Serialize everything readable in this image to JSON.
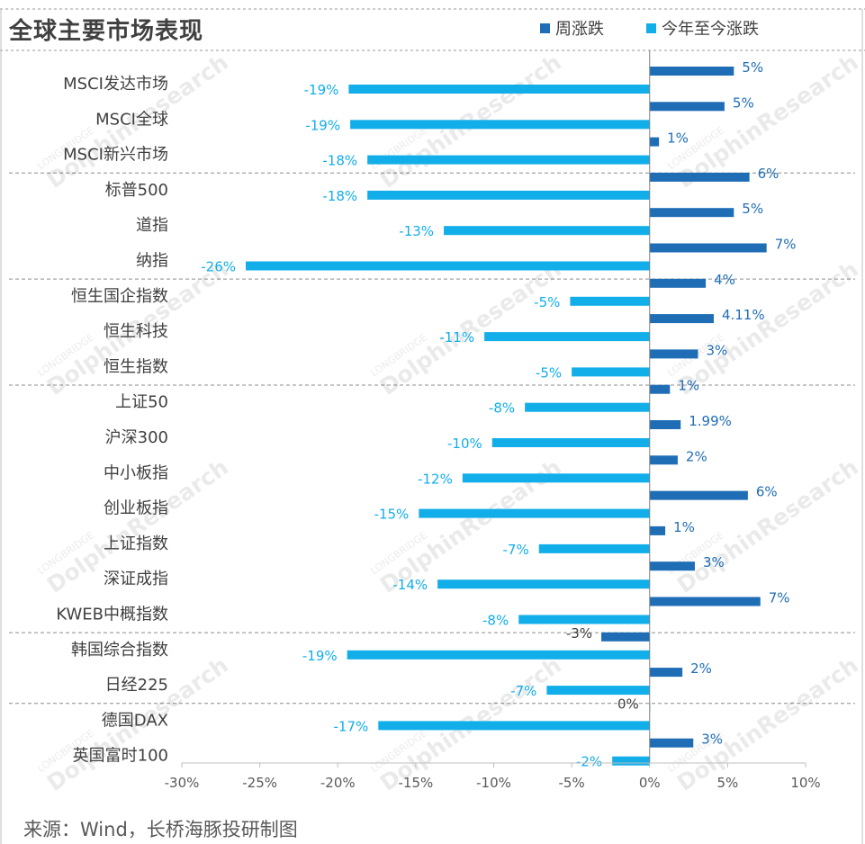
{
  "chart_data": {
    "type": "bar",
    "orientation": "horizontal",
    "title": "全球主要市场表现",
    "source": "来源：Wind，长桥海豚投研制图",
    "watermark": "LONGBRIDGE DolphinResearch",
    "xlim": [
      -30,
      10
    ],
    "xticks": [
      -30,
      -25,
      -20,
      -15,
      -10,
      -5,
      0,
      5,
      10
    ],
    "tick_labels": [
      "-30%",
      "-25%",
      "-20%",
      "-15%",
      "-10%",
      "-5%",
      "0%",
      "5%",
      "10%"
    ],
    "categories": [
      "MSCI发达市场",
      "MSCI全球",
      "MSCI新兴市场",
      "标普500",
      "道指",
      "纳指",
      "恒生国企指数",
      "恒生科技",
      "恒生指数",
      "上证50",
      "沪深300",
      "中小板指",
      "创业板指",
      "上证指数",
      "深证成指",
      "KWEB中概指数",
      "韩国综合指数",
      "日经225",
      "德国DAX",
      "英国富时100"
    ],
    "series": [
      {
        "name": "周涨跌",
        "color": "#1F6DB5",
        "values": [
          5.4,
          4.8,
          0.6,
          6.4,
          5.4,
          7.5,
          3.6,
          4.11,
          3.1,
          1.3,
          1.99,
          1.8,
          6.3,
          1.0,
          2.9,
          7.1,
          -3.1,
          2.1,
          0.0,
          2.8
        ],
        "labels": [
          "5%",
          "5%",
          "1%",
          "6%",
          "5%",
          "7%",
          "4%",
          "4.11%",
          "3%",
          "1%",
          "1.99%",
          "2%",
          "6%",
          "1%",
          "3%",
          "7%",
          "-3%",
          "2%",
          "0%",
          "3%"
        ]
      },
      {
        "name": "今年至今涨跌",
        "color": "#12AEEA",
        "values": [
          -19.3,
          -19.2,
          -18.1,
          -18.1,
          -13.2,
          -25.9,
          -5.1,
          -10.6,
          -5.0,
          -8.0,
          -10.1,
          -12.0,
          -14.8,
          -7.1,
          -13.6,
          -8.4,
          -19.4,
          -6.6,
          -17.4,
          -2.4
        ],
        "labels": [
          "-19%",
          "-19%",
          "-18%",
          "-18%",
          "-13%",
          "-26%",
          "-5%",
          "-11%",
          "-5%",
          "-8%",
          "-10%",
          "-12%",
          "-15%",
          "-7%",
          "-14%",
          "-8%",
          "-19%",
          "-7%",
          "-17%",
          "-2%"
        ]
      }
    ],
    "group_separators_after": [
      2,
      5,
      8,
      15,
      17
    ],
    "legend_position": "top-right"
  }
}
